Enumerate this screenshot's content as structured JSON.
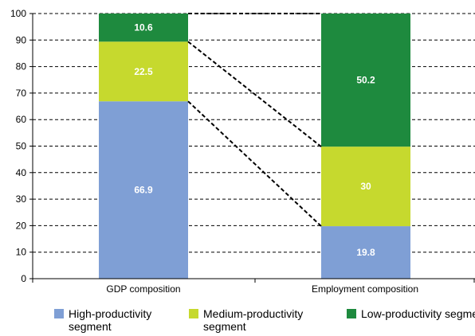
{
  "chart_data": {
    "type": "bar",
    "stacked": true,
    "categories": [
      "GDP composition",
      "Employment composition"
    ],
    "series": [
      {
        "name": "High-productivity segment",
        "values": [
          66.9,
          19.8
        ],
        "labels": [
          "66.9",
          "19.8"
        ],
        "color": "#7F9FD5"
      },
      {
        "name": "Medium-productivity segment",
        "values": [
          22.5,
          30
        ],
        "labels": [
          "22.5",
          "30"
        ],
        "color": "#C6D92E"
      },
      {
        "name": "Low-productivity segment",
        "values": [
          10.6,
          50.2
        ],
        "labels": [
          "10.6",
          "50.2"
        ],
        "color": "#1E8A3E"
      }
    ],
    "yticks": [
      "0",
      "10",
      "20",
      "30",
      "40",
      "50",
      "60",
      "70",
      "80",
      "90",
      "100"
    ],
    "ylim": [
      0,
      100
    ],
    "grid": true,
    "connector_lines": "dashed",
    "legend_position": "bottom",
    "title": "",
    "xlabel": "",
    "ylabel": ""
  }
}
